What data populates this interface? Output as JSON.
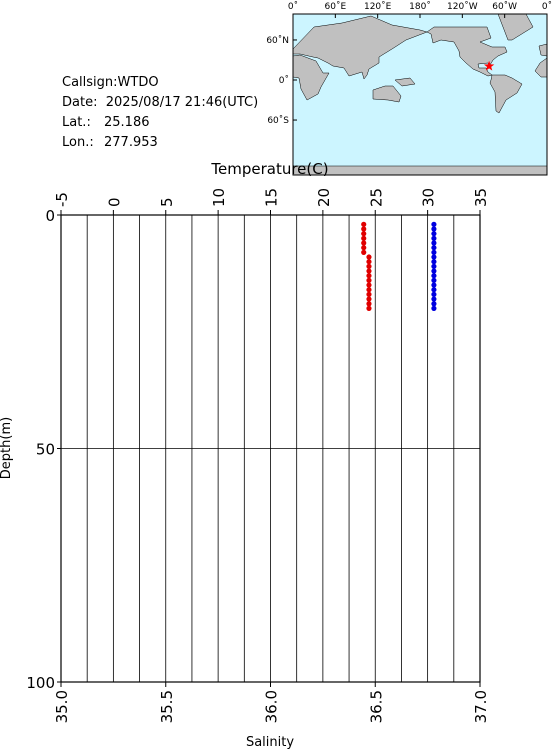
{
  "header": {
    "callsign": "Callsign:WTDO",
    "date": "Date:  2025/08/17 21:46(UTC)",
    "lat_label": "Lat.:",
    "lat": 25.186,
    "lon_label": "Lon.:",
    "lon": 277.953
  },
  "map": {
    "lonticks": [
      {
        "value": 0,
        "label": "0˚"
      },
      {
        "value": 60,
        "label": "60˚E"
      },
      {
        "value": 120,
        "label": "120˚E"
      },
      {
        "value": 180,
        "label": "180˚"
      },
      {
        "value": 240,
        "label": "120˚W"
      },
      {
        "value": 300,
        "label": "60˚W"
      },
      {
        "value": 360,
        "label": "0˚"
      }
    ],
    "latticks": [
      {
        "value": 60,
        "label": "60˚N"
      },
      {
        "value": 0,
        "label": "0˚"
      },
      {
        "value": -60,
        "label": "60˚S"
      }
    ],
    "marker_color": "#ff0000"
  },
  "chart_data": {
    "type": "profile",
    "top_axis": {
      "label": "Temperature(C)",
      "xlim": [
        -5,
        35
      ],
      "xticks": [
        -5,
        0,
        5,
        10,
        15,
        20,
        25,
        30,
        35
      ]
    },
    "bottom_axis": {
      "label": "Salinity",
      "xlim": [
        35,
        37
      ],
      "xticks": [
        {
          "value": 35,
          "label": "35.0"
        },
        {
          "value": 35.5,
          "label": "35.5"
        },
        {
          "value": 36,
          "label": "36.0"
        },
        {
          "value": 36.5,
          "label": "36.5"
        },
        {
          "value": 37,
          "label": "37.0"
        }
      ]
    },
    "y_label": "Depth(m)",
    "ylim": [
      0,
      100
    ],
    "yticks": [
      0,
      50,
      100
    ],
    "y_inverted": true,
    "grid": true,
    "grid_temperature": [
      -2.5,
      0,
      2.5,
      5,
      7.5,
      10,
      12.5,
      15,
      17.5,
      20,
      22.5,
      25,
      27.5,
      30,
      32.5
    ],
    "series": [
      {
        "color": "#e00000",
        "axis": "top",
        "depth": [
          2,
          3,
          4,
          5,
          6,
          7,
          8,
          9,
          10,
          11,
          12,
          13,
          14,
          15,
          16,
          17,
          18,
          19,
          20
        ],
        "values": [
          23.9,
          23.9,
          23.9,
          23.9,
          23.9,
          23.9,
          23.9,
          24.4,
          24.4,
          24.4,
          24.4,
          24.4,
          24.4,
          24.4,
          24.4,
          24.4,
          24.4,
          24.4,
          24.4
        ]
      },
      {
        "color": "#0000e0",
        "axis": "bottom",
        "depth": [
          2,
          3,
          4,
          5,
          6,
          7,
          8,
          9,
          10,
          11,
          12,
          13,
          14,
          15,
          16,
          17,
          18,
          19,
          20
        ],
        "values": [
          36.78,
          36.78,
          36.78,
          36.78,
          36.78,
          36.78,
          36.78,
          36.78,
          36.78,
          36.78,
          36.78,
          36.78,
          36.78,
          36.78,
          36.78,
          36.78,
          36.78,
          36.78,
          36.78
        ]
      }
    ]
  }
}
